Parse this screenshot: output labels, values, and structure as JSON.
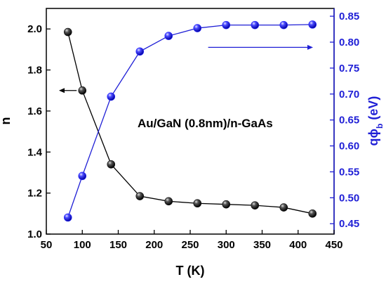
{
  "chart_data": {
    "type": "line",
    "annotation": "Au/GaN (0.8nm)/n-GaAs",
    "xlabel": "T (K)",
    "ylabel_left": "n",
    "ylabel_right": "qϕb (eV)",
    "xlim": [
      50,
      450
    ],
    "ylim_left": [
      1.0,
      2.1
    ],
    "ylim_right": [
      0.43,
      0.865
    ],
    "xticks": [
      50,
      100,
      150,
      200,
      250,
      300,
      350,
      400,
      450
    ],
    "yticks_left": [
      1.0,
      1.2,
      1.4,
      1.6,
      1.8,
      2.0
    ],
    "yticks_right": [
      0.45,
      0.5,
      0.55,
      0.6,
      0.65,
      0.7,
      0.75,
      0.8,
      0.85
    ],
    "grid": false,
    "x": [
      80,
      100,
      140,
      180,
      220,
      260,
      300,
      340,
      380,
      420
    ],
    "series": [
      {
        "axis": "left",
        "color": "#000000",
        "marker_color": "#111111",
        "values": [
          1.985,
          1.7,
          1.34,
          1.185,
          1.16,
          1.15,
          1.145,
          1.14,
          1.13,
          1.1
        ]
      },
      {
        "axis": "right",
        "color": "#1f1fd6",
        "marker_color": "#2b2bff",
        "values": [
          0.462,
          0.542,
          0.695,
          0.782,
          0.812,
          0.827,
          0.833,
          0.833,
          0.833,
          0.834
        ]
      }
    ],
    "arrows": [
      {
        "points_to": "left",
        "from": [
          100,
          1.7
        ]
      },
      {
        "points_to": "right",
        "from": [
          275,
          0.79
        ]
      }
    ]
  }
}
